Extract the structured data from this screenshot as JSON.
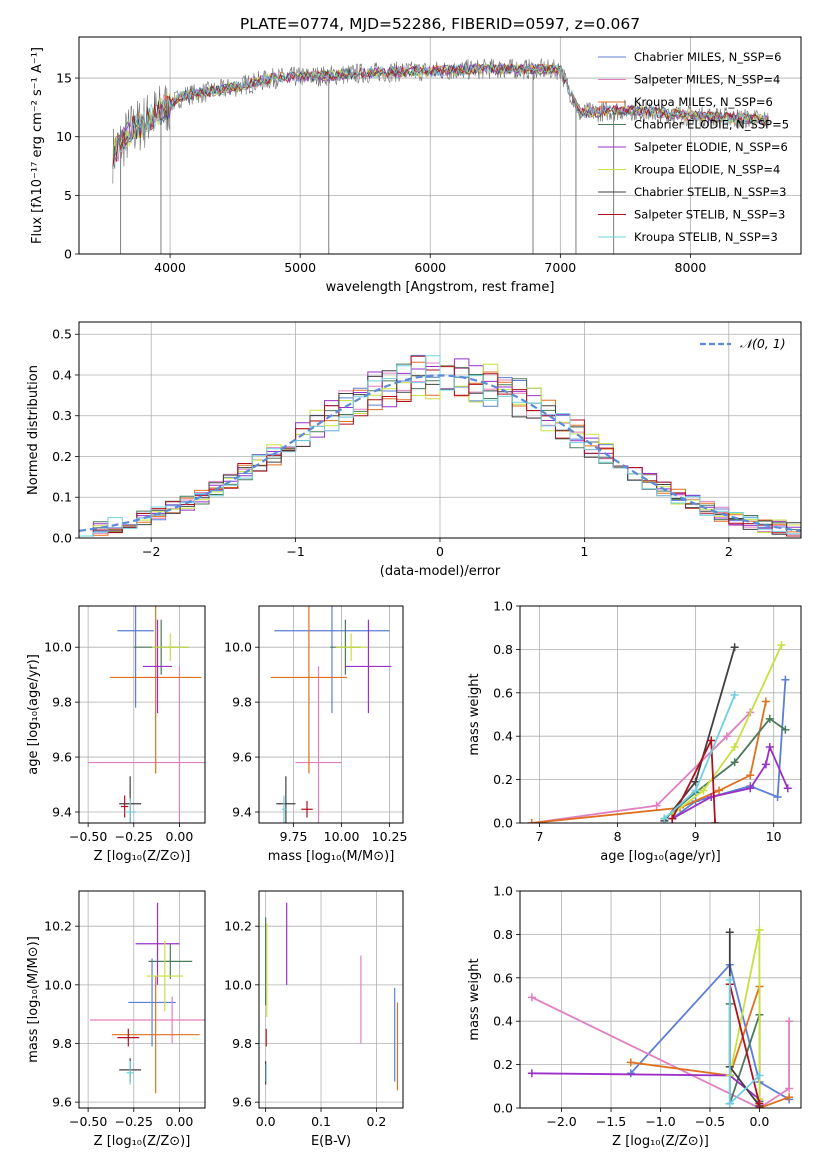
{
  "figure": {
    "title": "PLATE=0774, MJD=52286, FIBERID=0597, z=0.067"
  },
  "colors": {
    "chabrier_miles": "#5b7fd6",
    "salpeter_miles": "#e080c0",
    "kroupa_miles": "#e07020",
    "chabrier_elodie": "#4a7a5a",
    "salpeter_elodie": "#9a30c8",
    "kroupa_elodie": "#c8e040",
    "chabrier_stelib": "#404040",
    "salpeter_stelib": "#b01020",
    "kroupa_stelib": "#70d0e0",
    "data": "#707070",
    "normal": "#5b8bd8",
    "grid": "#b0b0b0"
  },
  "chart_data": [
    {
      "id": "spectrum",
      "type": "line",
      "xlabel": "wavelength [Angstrom, rest frame]",
      "ylabel": "Flux [fλ10⁻¹⁷ erg cm⁻² s⁻¹ A⁻¹]",
      "xlim": [
        3300,
        8850
      ],
      "ylim": [
        0,
        18.5
      ],
      "xticks": [
        4000,
        5000,
        6000,
        7000,
        8000
      ],
      "yticks": [
        0,
        5,
        10,
        15
      ],
      "legend_position": "top-right",
      "series": [
        {
          "name": "Chabrier MILES, N_SSP=6",
          "color_key": "chabrier_miles"
        },
        {
          "name": "Salpeter MILES, N_SSP=4",
          "color_key": "salpeter_miles"
        },
        {
          "name": "Kroupa MILES, N_SSP=6",
          "color_key": "kroupa_miles"
        },
        {
          "name": "Chabrier ELODIE, N_SSP=5",
          "color_key": "chabrier_elodie"
        },
        {
          "name": "Salpeter ELODIE, N_SSP=6",
          "color_key": "salpeter_elodie"
        },
        {
          "name": "Kroupa ELODIE, N_SSP=4",
          "color_key": "kroupa_elodie"
        },
        {
          "name": "Chabrier STELIB, N_SSP=3",
          "color_key": "chabrier_stelib"
        },
        {
          "name": "Salpeter STELIB, N_SSP=3",
          "color_key": "salpeter_stelib"
        },
        {
          "name": "Kroupa STELIB, N_SSP=3",
          "color_key": "kroupa_stelib"
        }
      ],
      "continuum": [
        [
          3560,
          8.5
        ],
        [
          3700,
          10.5
        ],
        [
          3900,
          12.0
        ],
        [
          4100,
          13.5
        ],
        [
          4400,
          14.0
        ],
        [
          4800,
          15.0
        ],
        [
          5200,
          15.2
        ],
        [
          5600,
          15.5
        ],
        [
          6000,
          15.6
        ],
        [
          6500,
          15.8
        ],
        [
          7000,
          15.7
        ],
        [
          7150,
          12.0
        ],
        [
          7500,
          12.3
        ],
        [
          8000,
          11.8
        ],
        [
          8500,
          11.5
        ],
        [
          8600,
          11.4
        ]
      ],
      "spikes": [
        [
          5220,
          0
        ],
        [
          6790,
          0
        ],
        [
          7120,
          0
        ],
        [
          7410,
          0
        ],
        [
          3930,
          0
        ],
        [
          3620,
          0
        ]
      ]
    },
    {
      "id": "residuals",
      "type": "histogram",
      "xlabel": "(data-model)/error",
      "ylabel": "Normed distribution",
      "xlim": [
        -2.5,
        2.5
      ],
      "ylim": [
        0,
        0.53
      ],
      "xticks": [
        -2,
        -1,
        0,
        1,
        2
      ],
      "yticks": [
        0.0,
        0.1,
        0.2,
        0.3,
        0.4,
        0.5
      ],
      "legend_label": "𝒩(0, 1)",
      "legend_position": "top-right",
      "bin_width": 0.1
    },
    {
      "id": "age_vs_z",
      "type": "scatter",
      "xlabel": "Z [log₁₀(Z/Z⊙)]",
      "ylabel": "age  [log₁₀(age/yr)]",
      "xlim": [
        -0.55,
        0.14
      ],
      "ylim": [
        9.36,
        10.15
      ],
      "xticks": [
        -0.5,
        -0.25,
        0.0
      ],
      "yticks": [
        9.4,
        9.6,
        9.8,
        10.0
      ],
      "points": [
        {
          "color_key": "chabrier_miles",
          "x": -0.24,
          "y": 10.06,
          "xerr": 0.1,
          "yerr": 0.28
        },
        {
          "color_key": "salpeter_miles",
          "x": 0.0,
          "y": 9.58,
          "xerr": 0.5,
          "yerr": 0.35
        },
        {
          "color_key": "kroupa_miles",
          "x": -0.13,
          "y": 9.89,
          "xerr": 0.25,
          "yerr": 0.35
        },
        {
          "color_key": "chabrier_elodie",
          "x": -0.1,
          "y": 10.0,
          "xerr": 0.15,
          "yerr": 0.1
        },
        {
          "color_key": "salpeter_elodie",
          "x": -0.12,
          "y": 9.93,
          "xerr": 0.08,
          "yerr": 0.17
        },
        {
          "color_key": "kroupa_elodie",
          "x": -0.05,
          "y": 10.0,
          "xerr": 0.1,
          "yerr": 0.05
        },
        {
          "color_key": "chabrier_stelib",
          "x": -0.27,
          "y": 9.43,
          "xerr": 0.06,
          "yerr": 0.1
        },
        {
          "color_key": "salpeter_stelib",
          "x": -0.3,
          "y": 9.42,
          "xerr": 0.02,
          "yerr": 0.04
        },
        {
          "color_key": "kroupa_stelib",
          "x": -0.27,
          "y": 9.4,
          "xerr": 0.03,
          "yerr": 0.05
        }
      ]
    },
    {
      "id": "age_vs_mass",
      "type": "scatter",
      "xlabel": "mass [log₁₀(M/M⊙)]",
      "ylabel": "",
      "xlim": [
        9.57,
        10.32
      ],
      "ylim": [
        9.36,
        10.15
      ],
      "xticks": [
        9.75,
        10.0,
        10.25
      ],
      "yticks": [
        9.4,
        9.6,
        9.8,
        10.0
      ],
      "points": [
        {
          "color_key": "chabrier_miles",
          "x": 9.95,
          "y": 10.06,
          "xerr": 0.3,
          "yerr": 0.3
        },
        {
          "color_key": "salpeter_miles",
          "x": 9.88,
          "y": 9.58,
          "xerr": 0.12,
          "yerr": 0.35
        },
        {
          "color_key": "kroupa_miles",
          "x": 9.83,
          "y": 9.89,
          "xerr": 0.2,
          "yerr": 0.35
        },
        {
          "color_key": "chabrier_elodie",
          "x": 10.02,
          "y": 10.0,
          "xerr": 0.08,
          "yerr": 0.1
        },
        {
          "color_key": "salpeter_elodie",
          "x": 10.14,
          "y": 9.93,
          "xerr": 0.12,
          "yerr": 0.17
        },
        {
          "color_key": "kroupa_elodie",
          "x": 10.05,
          "y": 10.0,
          "xerr": 0.08,
          "yerr": 0.05
        },
        {
          "color_key": "chabrier_stelib",
          "x": 9.71,
          "y": 9.43,
          "xerr": 0.05,
          "yerr": 0.1
        },
        {
          "color_key": "salpeter_stelib",
          "x": 9.82,
          "y": 9.41,
          "xerr": 0.03,
          "yerr": 0.03
        },
        {
          "color_key": "kroupa_stelib",
          "x": 9.7,
          "y": 9.41,
          "xerr": 0.01,
          "yerr": 0.05
        }
      ]
    },
    {
      "id": "weight_vs_age",
      "type": "line",
      "xlabel": "age  [log₁₀(age/yr)]",
      "ylabel": "mass weight",
      "xlim": [
        6.75,
        10.35
      ],
      "ylim": [
        0,
        1.0
      ],
      "xticks": [
        7,
        8,
        9,
        10
      ],
      "yticks": [
        0.0,
        0.2,
        0.4,
        0.6,
        0.8,
        1.0
      ],
      "series": [
        {
          "color_key": "chabrier_miles",
          "points": [
            [
              8.7,
              0.02
            ],
            [
              9.0,
              0.1
            ],
            [
              9.7,
              0.17
            ],
            [
              10.05,
              0.12
            ],
            [
              10.15,
              0.66
            ]
          ]
        },
        {
          "color_key": "salpeter_miles",
          "points": [
            [
              6.9,
              0.0
            ],
            [
              8.5,
              0.08
            ],
            [
              9.4,
              0.4
            ],
            [
              9.7,
              0.51
            ]
          ]
        },
        {
          "color_key": "kroupa_miles",
          "points": [
            [
              6.9,
              0.0
            ],
            [
              8.8,
              0.07
            ],
            [
              9.3,
              0.15
            ],
            [
              9.7,
              0.22
            ],
            [
              9.9,
              0.56
            ]
          ]
        },
        {
          "color_key": "chabrier_elodie",
          "points": [
            [
              8.6,
              0.02
            ],
            [
              9.0,
              0.14
            ],
            [
              9.5,
              0.28
            ],
            [
              9.95,
              0.48
            ],
            [
              10.15,
              0.43
            ]
          ]
        },
        {
          "color_key": "salpeter_elodie",
          "points": [
            [
              8.7,
              0.02
            ],
            [
              9.2,
              0.12
            ],
            [
              9.7,
              0.16
            ],
            [
              9.9,
              0.27
            ],
            [
              9.95,
              0.35
            ],
            [
              10.18,
              0.16
            ]
          ]
        },
        {
          "color_key": "kroupa_elodie",
          "points": [
            [
              8.7,
              0.04
            ],
            [
              9.1,
              0.15
            ],
            [
              9.5,
              0.35
            ],
            [
              10.1,
              0.82
            ]
          ]
        },
        {
          "color_key": "chabrier_stelib",
          "points": [
            [
              8.6,
              0.01
            ],
            [
              9.0,
              0.19
            ],
            [
              9.5,
              0.81
            ]
          ]
        },
        {
          "color_key": "salpeter_stelib",
          "points": [
            [
              8.7,
              0.02
            ],
            [
              9.2,
              0.38
            ],
            [
              9.25,
              0.0
            ]
          ]
        },
        {
          "color_key": "kroupa_stelib",
          "points": [
            [
              8.6,
              0.02
            ],
            [
              9.0,
              0.15
            ],
            [
              9.5,
              0.59
            ]
          ]
        }
      ]
    },
    {
      "id": "mass_vs_z",
      "type": "scatter",
      "xlabel": "Z [log₁₀(Z/Z⊙)]",
      "ylabel": "mass [log₁₀(M/M⊙)]",
      "xlim": [
        -0.55,
        0.14
      ],
      "ylim": [
        9.58,
        10.32
      ],
      "xticks": [
        -0.5,
        -0.25,
        0.0
      ],
      "yticks": [
        9.6,
        9.8,
        10.0,
        10.2
      ],
      "points": [
        {
          "color_key": "chabrier_miles",
          "x": -0.15,
          "y": 9.94,
          "xerr": 0.13,
          "yerr": 0.15
        },
        {
          "color_key": "salpeter_miles",
          "x": -0.04,
          "y": 9.88,
          "xerr": 0.45,
          "yerr": 0.08
        },
        {
          "color_key": "kroupa_miles",
          "x": -0.13,
          "y": 9.83,
          "xerr": 0.24,
          "yerr": 0.2
        },
        {
          "color_key": "chabrier_elodie",
          "x": -0.05,
          "y": 10.08,
          "xerr": 0.12,
          "yerr": 0.06
        },
        {
          "color_key": "salpeter_elodie",
          "x": -0.12,
          "y": 10.14,
          "xerr": 0.12,
          "yerr": 0.14
        },
        {
          "color_key": "kroupa_elodie",
          "x": -0.08,
          "y": 10.03,
          "xerr": 0.1,
          "yerr": 0.12
        },
        {
          "color_key": "chabrier_stelib",
          "x": -0.27,
          "y": 9.71,
          "xerr": 0.06,
          "yerr": 0.04
        },
        {
          "color_key": "salpeter_stelib",
          "x": -0.28,
          "y": 9.82,
          "xerr": 0.06,
          "yerr": 0.03
        },
        {
          "color_key": "kroupa_stelib",
          "x": -0.27,
          "y": 9.7,
          "xerr": 0.02,
          "yerr": 0.04
        }
      ]
    },
    {
      "id": "mass_vs_ebv",
      "type": "scatter",
      "xlabel": "E(B-V)",
      "ylabel": "",
      "xlim": [
        -0.012,
        0.248
      ],
      "ylim": [
        9.58,
        10.32
      ],
      "xticks": [
        0.0,
        0.1,
        0.2
      ],
      "yticks": [
        9.6,
        9.8,
        10.0,
        10.2
      ],
      "points": [
        {
          "color_key": "chabrier_miles",
          "x": 0.233,
          "y": 9.83,
          "xerr": 0.0,
          "yerr": 0.16
        },
        {
          "color_key": "salpeter_miles",
          "x": 0.172,
          "y": 9.95,
          "xerr": 0.0,
          "yerr": 0.15
        },
        {
          "color_key": "kroupa_miles",
          "x": 0.238,
          "y": 9.79,
          "xerr": 0.0,
          "yerr": 0.15
        },
        {
          "color_key": "chabrier_elodie",
          "x": 0.0,
          "y": 10.08,
          "xerr": 0.0,
          "yerr": 0.15
        },
        {
          "color_key": "salpeter_elodie",
          "x": 0.038,
          "y": 10.14,
          "xerr": 0.0,
          "yerr": 0.14
        },
        {
          "color_key": "kroupa_elodie",
          "x": 0.002,
          "y": 10.05,
          "xerr": 0.0,
          "yerr": 0.16
        },
        {
          "color_key": "chabrier_stelib",
          "x": 0.0,
          "y": 9.7,
          "xerr": 0.0,
          "yerr": 0.04
        },
        {
          "color_key": "salpeter_stelib",
          "x": 0.001,
          "y": 9.82,
          "xerr": 0.0,
          "yerr": 0.03
        },
        {
          "color_key": "kroupa_stelib",
          "x": 0.001,
          "y": 9.7,
          "xerr": 0.0,
          "yerr": 0.03
        }
      ]
    },
    {
      "id": "weight_vs_z",
      "type": "line",
      "xlabel": "Z [log₁₀(Z/Z⊙)]",
      "ylabel": "mass weight",
      "xlim": [
        -2.42,
        0.42
      ],
      "ylim": [
        0,
        1.0
      ],
      "xticks": [
        -2.0,
        -1.5,
        -1.0,
        -0.5,
        0.0
      ],
      "yticks": [
        0.0,
        0.2,
        0.4,
        0.6,
        0.8,
        1.0
      ],
      "series": [
        {
          "color_key": "chabrier_miles",
          "points": [
            [
              -1.3,
              0.16
            ],
            [
              -0.3,
              0.66
            ],
            [
              0.0,
              0.12
            ],
            [
              0.3,
              0.04
            ]
          ]
        },
        {
          "color_key": "salpeter_miles",
          "points": [
            [
              -2.3,
              0.51
            ],
            [
              0.0,
              0.0
            ],
            [
              0.3,
              0.09
            ],
            [
              0.3,
              0.4
            ]
          ]
        },
        {
          "color_key": "kroupa_miles",
          "points": [
            [
              -1.3,
              0.21
            ],
            [
              -0.3,
              0.15
            ],
            [
              0.0,
              0.56
            ],
            [
              0.0,
              0.0
            ],
            [
              0.3,
              0.05
            ]
          ]
        },
        {
          "color_key": "chabrier_elodie",
          "points": [
            [
              -0.3,
              0.48
            ],
            [
              -0.3,
              0.02
            ],
            [
              0.0,
              0.43
            ],
            [
              0.0,
              0.03
            ]
          ]
        },
        {
          "color_key": "salpeter_elodie",
          "points": [
            [
              -2.3,
              0.16
            ],
            [
              -0.3,
              0.15
            ],
            [
              0.0,
              0.04
            ],
            [
              0.0,
              0.02
            ]
          ]
        },
        {
          "color_key": "kroupa_elodie",
          "points": [
            [
              -0.3,
              0.15
            ],
            [
              0.0,
              0.82
            ],
            [
              0.0,
              0.04
            ]
          ]
        },
        {
          "color_key": "chabrier_stelib",
          "points": [
            [
              -0.3,
              0.81
            ],
            [
              -0.3,
              0.19
            ],
            [
              0.0,
              0.01
            ]
          ]
        },
        {
          "color_key": "salpeter_stelib",
          "points": [
            [
              -0.3,
              0.57
            ],
            [
              0.0,
              0.02
            ],
            [
              0.0,
              0.0
            ]
          ]
        },
        {
          "color_key": "kroupa_stelib",
          "points": [
            [
              -0.3,
              0.59
            ],
            [
              -0.3,
              0.02
            ],
            [
              0.0,
              0.15
            ]
          ]
        }
      ]
    }
  ]
}
